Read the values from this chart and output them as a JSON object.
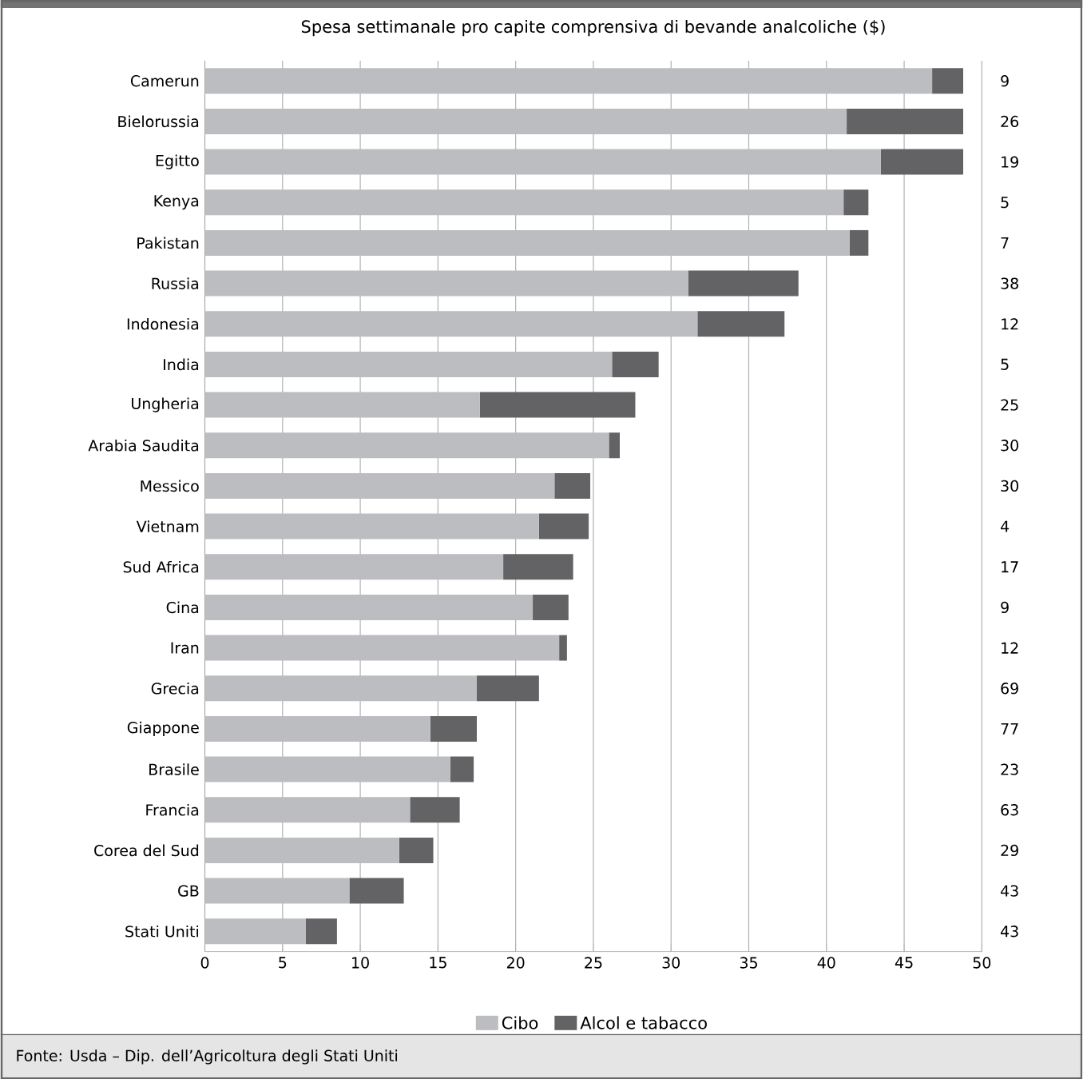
{
  "chart_data": {
    "type": "bar",
    "orientation": "horizontal",
    "stacked": true,
    "title": "Spesa settimanale pro capite comprensiva di bevande analcoliche ($)",
    "categories": [
      "Camerun",
      "Bielorussia",
      "Egitto",
      "Kenya",
      "Pakistan",
      "Russia",
      "Indonesia",
      "India",
      "Ungheria",
      "Arabia Saudita",
      "Messico",
      "Vietnam",
      "Sud Africa",
      "Cina",
      "Iran",
      "Grecia",
      "Giappone",
      "Brasile",
      "Francia",
      "Corea del Sud",
      "GB",
      "Stati Uniti"
    ],
    "series": [
      {
        "name": "Cibo",
        "color": "#bcbdc0",
        "values": [
          46.8,
          41.3,
          43.5,
          41.1,
          41.5,
          31.1,
          31.7,
          26.2,
          17.7,
          26.0,
          22.5,
          21.5,
          19.2,
          21.1,
          22.8,
          17.5,
          14.5,
          15.8,
          13.2,
          12.5,
          9.3,
          6.5
        ]
      },
      {
        "name": "Alcol e tabacco",
        "color": "#636365",
        "values": [
          2.0,
          7.5,
          5.3,
          1.6,
          1.2,
          7.1,
          5.6,
          3.0,
          10.0,
          0.7,
          2.3,
          3.2,
          4.5,
          2.3,
          0.5,
          4.0,
          3.0,
          1.5,
          3.2,
          2.2,
          3.5,
          2.0
        ]
      }
    ],
    "xlim": [
      0,
      50
    ],
    "xticks": [
      0,
      5,
      10,
      15,
      20,
      25,
      30,
      35,
      40,
      45,
      50
    ],
    "grid": "x",
    "legend": "bottom",
    "annotations": [
      "9",
      "26",
      "19",
      "5",
      "7",
      "38",
      "12",
      "5",
      "25",
      "30",
      "30",
      "4",
      "17",
      "9",
      "12",
      "69",
      "77",
      "23",
      "63",
      "29",
      "43",
      "43",
      "Fonte: Usda – Dip. dell’Agricoltura degli Stati Uniti"
    ]
  }
}
